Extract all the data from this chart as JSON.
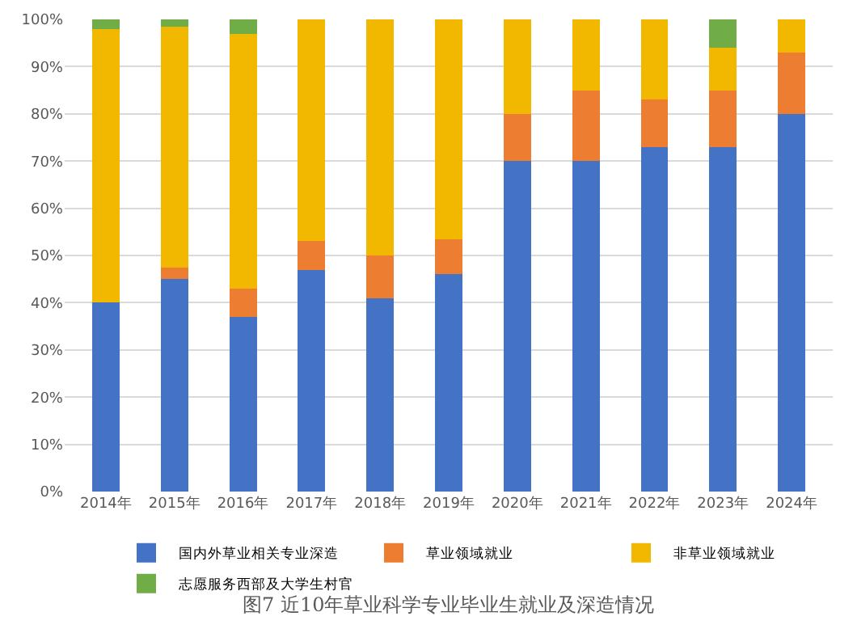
{
  "chart_data": {
    "type": "bar",
    "stacked": true,
    "categories": [
      "2014年",
      "2015年",
      "2016年",
      "2017年",
      "2018年",
      "2019年",
      "2020年",
      "2021年",
      "2022年",
      "2023年",
      "2024年"
    ],
    "series": [
      {
        "name": "国内外草业相关专业深造",
        "color": "#4472c4",
        "values": [
          40,
          45,
          37,
          47,
          41,
          46,
          70,
          70,
          73,
          73,
          80
        ]
      },
      {
        "name": "草业领域就业",
        "color": "#ed7d31",
        "values": [
          0,
          2.5,
          6,
          6,
          9,
          7.5,
          10,
          15,
          10,
          12,
          13
        ]
      },
      {
        "name": "非草业领域就业",
        "color": "#f2b800",
        "values": [
          58,
          51,
          54,
          47,
          50,
          46.5,
          20,
          15,
          17,
          9,
          7
        ]
      },
      {
        "name": "志愿服务西部及大学生村官",
        "color": "#70ad47",
        "values": [
          2,
          1.5,
          3,
          0,
          0,
          0,
          0,
          0,
          0,
          6,
          0
        ]
      }
    ],
    "ylim": [
      0,
      100
    ],
    "yticks": [
      {
        "value": 0,
        "label": "0%"
      },
      {
        "value": 10,
        "label": "10%"
      },
      {
        "value": 20,
        "label": "20%"
      },
      {
        "value": 30,
        "label": "30%"
      },
      {
        "value": 40,
        "label": "40%"
      },
      {
        "value": 50,
        "label": "50%"
      },
      {
        "value": 60,
        "label": "60%"
      },
      {
        "value": 70,
        "label": "70%"
      },
      {
        "value": 80,
        "label": "80%"
      },
      {
        "value": 90,
        "label": "90%"
      },
      {
        "value": 100,
        "label": "100%"
      }
    ],
    "grid": "y",
    "legend": "bottom",
    "annotations": [
      "图7 近10年草业科学专业毕业生就业及深造情况"
    ]
  }
}
